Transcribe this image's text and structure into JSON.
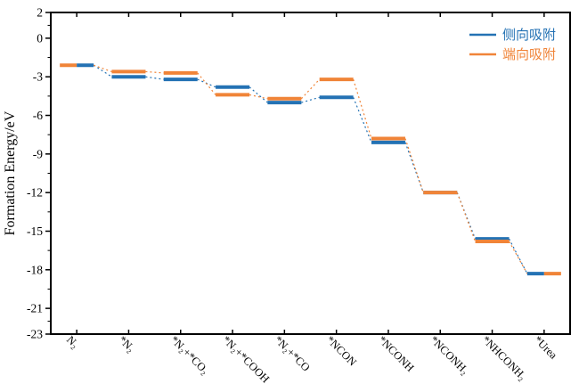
{
  "figure": {
    "background": "#ffffff",
    "axis_color": "#000000"
  },
  "chart_data": {
    "type": "line",
    "variant": "stepped-energy-level-diagram",
    "title": "",
    "xlabel": "",
    "ylabel": "Formation Energy/eV",
    "ylim": [
      -23,
      2
    ],
    "yticks_major": [
      2,
      0,
      -3,
      -6,
      -9,
      -12,
      -15,
      -18,
      -21,
      -23
    ],
    "minor_ticks": "one-at-midpoint-of-each-major-interval",
    "grid": false,
    "legend_position": "top-right-inside",
    "categories": [
      "N₂",
      "*N₂",
      "*N₂+*CO₂",
      "*N₂+*COOH",
      "*N₂+*CO",
      "*NCON",
      "*NCONH",
      "*NCONH₂",
      "*NHCONH₂",
      "*Urea"
    ],
    "series": [
      {
        "name": "侧向吸附",
        "color": "#2472B4",
        "values": [
          -2.1,
          -3.0,
          -3.2,
          -3.8,
          -5.0,
          -4.6,
          -8.1,
          -12.0,
          -15.6,
          -18.3
        ]
      },
      {
        "name": "端向吸附",
        "color": "#F08438",
        "values": [
          -2.1,
          -2.6,
          -2.7,
          -4.4,
          -4.7,
          -3.2,
          -7.8,
          -12.0,
          -15.8,
          -18.3
        ]
      }
    ],
    "shared_levels": [
      {
        "index": 0,
        "left_series": 1,
        "right_series": 0
      },
      {
        "index": 9,
        "left_series": 0,
        "right_series": 1
      }
    ]
  }
}
